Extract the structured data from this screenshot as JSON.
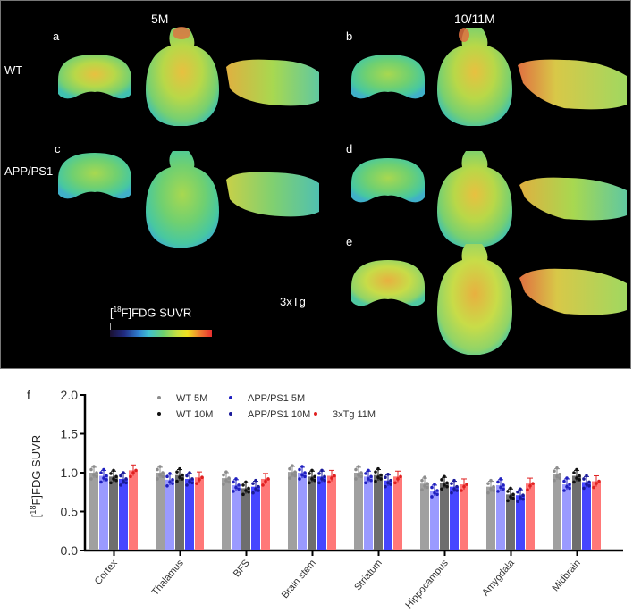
{
  "panels": {
    "column_titles": [
      "5M",
      "10/11M"
    ],
    "row_labels": [
      "WT",
      "APP/PS1",
      "3xTg"
    ],
    "panel_letters": [
      "a",
      "b",
      "c",
      "d",
      "e"
    ],
    "colorbar_label": "[18F]FDG SUVR",
    "colorbar_label_sup": "18",
    "colorbar_label_rest": "F]FDG SUVR"
  },
  "chart_panel_letter": "f",
  "legend": [
    {
      "label": "WT 5M",
      "color": "#8c8c8c"
    },
    {
      "label": "APP/PS1 5M",
      "color": "#2020c0"
    },
    {
      "label": "WT 10M",
      "color": "#111111"
    },
    {
      "label": "APP/PS1 10M",
      "color": "#1a1a9a"
    },
    {
      "label": "3xTg 11M",
      "color": "#e02020"
    }
  ],
  "chart_data": {
    "type": "bar",
    "title": "",
    "xlabel": "",
    "ylabel": "[18F]FDG SUVR",
    "ylim": [
      0,
      2.0
    ],
    "yticks": [
      "0.0",
      "0.5",
      "1.0",
      "1.5",
      "2.0"
    ],
    "grid": false,
    "legend_position": "top",
    "categories": [
      "Cortex",
      "Thalamus",
      "BFS",
      "Brain stem",
      "Striatum",
      "Hippocampus",
      "Amygdala",
      "Midbrain"
    ],
    "series": [
      {
        "name": "WT 5M",
        "bar_color": "#a0a0a0",
        "values": [
          1.0,
          1.0,
          0.93,
          1.01,
          1.0,
          0.86,
          0.82,
          0.98
        ]
      },
      {
        "name": "APP/PS1 5M",
        "bar_color": "#9a9aff",
        "values": [
          0.96,
          0.91,
          0.84,
          1.0,
          0.95,
          0.77,
          0.84,
          0.85
        ]
      },
      {
        "name": "WT 10M",
        "bar_color": "#6e6e6e",
        "values": [
          0.95,
          0.97,
          0.8,
          0.95,
          0.97,
          0.87,
          0.72,
          0.96
        ]
      },
      {
        "name": "APP/PS1 10M",
        "bar_color": "#4646ff",
        "values": [
          0.92,
          0.92,
          0.82,
          0.95,
          0.9,
          0.82,
          0.71,
          0.88
        ]
      },
      {
        "name": "3xTg 11M",
        "bar_color": "#ff7878",
        "values": [
          1.03,
          0.94,
          0.92,
          0.96,
          0.95,
          0.85,
          0.86,
          0.89
        ]
      }
    ]
  }
}
